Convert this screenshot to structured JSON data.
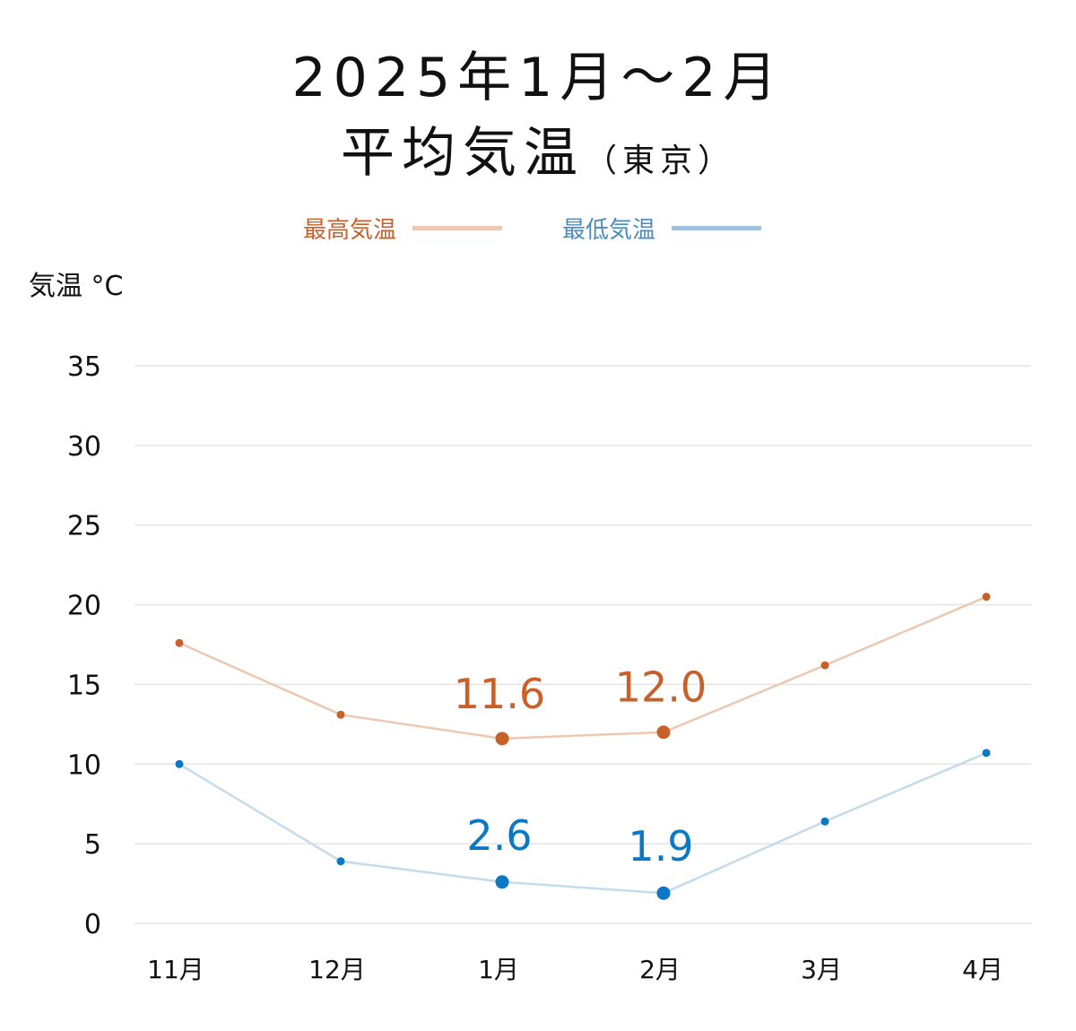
{
  "chart_data": {
    "type": "line",
    "title": "2025年1月～2月",
    "subtitle": "平均気温",
    "subtitle_note": "（東京）",
    "ylabel": "気温 °C",
    "xlabel": "",
    "categories": [
      "11月",
      "12月",
      "1月",
      "2月",
      "3月",
      "4月"
    ],
    "ylim": [
      0,
      35
    ],
    "yticks": [
      0,
      5,
      10,
      15,
      20,
      25,
      30,
      35
    ],
    "grid": true,
    "legend_position": "top",
    "series": [
      {
        "name": "最高気温",
        "color": "#c8602a",
        "line_color": "#ecc8b2",
        "values": [
          17.6,
          13.1,
          11.6,
          12.0,
          16.2,
          20.5
        ],
        "labeled": [
          "11.6",
          null,
          null,
          null
        ],
        "data_labels": [
          null,
          null,
          "11.6",
          "12.0",
          null,
          null
        ]
      },
      {
        "name": "最低気温",
        "color": "#0a78c4",
        "line_color": "#c2dced",
        "values": [
          10.0,
          3.9,
          2.6,
          1.9,
          6.4,
          10.7
        ],
        "data_labels": [
          null,
          null,
          "2.6",
          "1.9",
          null,
          null
        ]
      }
    ]
  }
}
